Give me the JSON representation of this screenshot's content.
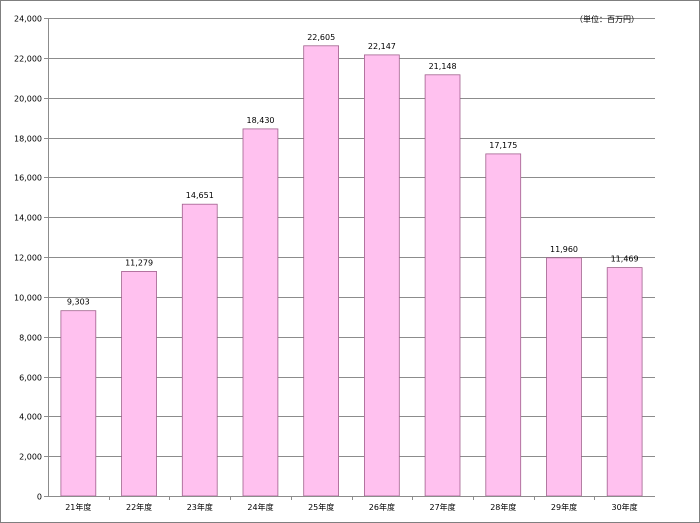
{
  "chart_data": {
    "type": "bar",
    "title": "",
    "unit_label": "（単位：百万円）",
    "categories": [
      "21年度",
      "22年度",
      "23年度",
      "24年度",
      "25年度",
      "26年度",
      "27年度",
      "28年度",
      "29年度",
      "30年度"
    ],
    "values": [
      9303,
      11279,
      14651,
      18430,
      22605,
      22147,
      21148,
      17175,
      11960,
      11469
    ],
    "data_labels": [
      "9,303",
      "11,279",
      "14,651",
      "18,430",
      "22,605",
      "22,147",
      "21,148",
      "17,175",
      "11,960",
      "11,469"
    ],
    "y_ticks": [
      "0",
      "2,000",
      "4,000",
      "6,000",
      "8,000",
      "10,000",
      "12,000",
      "14,000",
      "16,000",
      "18,000",
      "20,000",
      "22,000",
      "24,000"
    ],
    "ylim": [
      0,
      24000
    ],
    "grid": true,
    "legend": "none",
    "bar_color": "#ffc1ef",
    "bar_border_color": "#a0608c",
    "grid_color": "#8c8c8c"
  }
}
